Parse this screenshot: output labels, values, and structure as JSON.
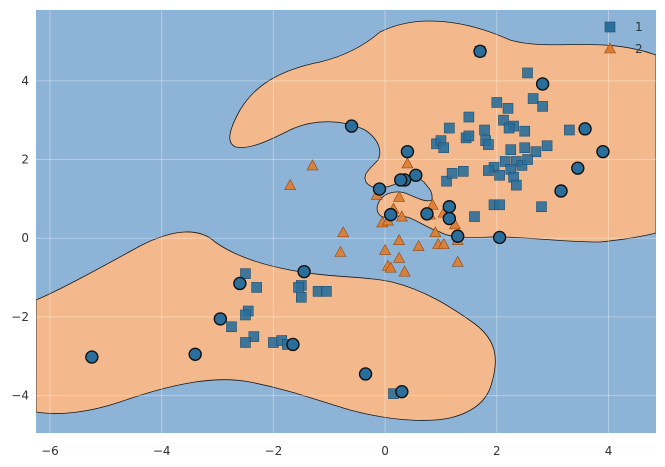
{
  "chart_data": {
    "type": "scatter",
    "title": "",
    "xlabel": "",
    "ylabel": "",
    "xlim": [
      -6.25,
      4.85
    ],
    "ylim": [
      -4.95,
      5.8
    ],
    "xticks": [
      -6,
      -4,
      -2,
      0,
      2,
      4
    ],
    "yticks": [
      -4,
      -2,
      0,
      2,
      4
    ],
    "xtick_labels": [
      "−6",
      "−4",
      "−2",
      "0",
      "2",
      "4"
    ],
    "ytick_labels": [
      "−4",
      "−2",
      "0",
      "2",
      "4"
    ],
    "grid": true,
    "legend_position": "top-right",
    "background_region_color": "#8db3d6",
    "decision_region_color": "#f3b98c",
    "series": [
      {
        "name": "1",
        "marker": "square",
        "color": "#2a6f9b",
        "points": [
          [
            1.7,
            4.75
          ],
          [
            2.55,
            4.2
          ],
          [
            2.65,
            3.55
          ],
          [
            2.82,
            3.35
          ],
          [
            2.0,
            3.45
          ],
          [
            2.2,
            3.3
          ],
          [
            1.5,
            3.08
          ],
          [
            2.12,
            3.0
          ],
          [
            2.3,
            2.85
          ],
          [
            2.22,
            2.8
          ],
          [
            2.5,
            2.72
          ],
          [
            3.3,
            2.75
          ],
          [
            1.78,
            2.75
          ],
          [
            1.15,
            2.8
          ],
          [
            1.45,
            2.55
          ],
          [
            1.5,
            2.6
          ],
          [
            1.8,
            2.48
          ],
          [
            1.85,
            2.38
          ],
          [
            0.92,
            2.4
          ],
          [
            1.0,
            2.48
          ],
          [
            1.05,
            2.3
          ],
          [
            2.25,
            2.25
          ],
          [
            2.5,
            2.3
          ],
          [
            2.9,
            2.35
          ],
          [
            2.7,
            2.2
          ],
          [
            2.15,
            1.95
          ],
          [
            2.35,
            1.95
          ],
          [
            2.45,
            1.85
          ],
          [
            2.55,
            2.0
          ],
          [
            1.95,
            1.8
          ],
          [
            1.85,
            1.72
          ],
          [
            2.05,
            1.6
          ],
          [
            2.25,
            1.75
          ],
          [
            2.3,
            1.55
          ],
          [
            2.35,
            1.35
          ],
          [
            1.1,
            1.45
          ],
          [
            1.2,
            1.65
          ],
          [
            1.4,
            1.7
          ],
          [
            1.6,
            0.55
          ],
          [
            1.95,
            0.85
          ],
          [
            2.05,
            0.85
          ],
          [
            2.8,
            0.8
          ],
          [
            -2.5,
            -0.9
          ],
          [
            -1.5,
            -1.2
          ],
          [
            -1.55,
            -1.25
          ],
          [
            -1.5,
            -1.5
          ],
          [
            -1.2,
            -1.35
          ],
          [
            -1.05,
            -1.35
          ],
          [
            -2.3,
            -1.25
          ],
          [
            -2.45,
            -1.85
          ],
          [
            -2.5,
            -1.95
          ],
          [
            -2.75,
            -2.25
          ],
          [
            -2.35,
            -2.5
          ],
          [
            -2.5,
            -2.65
          ],
          [
            -2.0,
            -2.65
          ],
          [
            -1.85,
            -2.6
          ],
          [
            -1.75,
            -2.7
          ],
          [
            0.15,
            -3.95
          ]
        ]
      },
      {
        "name": "2",
        "marker": "triangle",
        "color": "#e07a2e",
        "points": [
          [
            -1.3,
            1.85
          ],
          [
            -1.7,
            1.35
          ],
          [
            0.4,
            1.9
          ],
          [
            -0.15,
            1.1
          ],
          [
            0.25,
            1.05
          ],
          [
            0.15,
            0.75
          ],
          [
            0.3,
            0.55
          ],
          [
            0.85,
            0.85
          ],
          [
            1.05,
            0.65
          ],
          [
            -0.05,
            0.4
          ],
          [
            0.05,
            0.45
          ],
          [
            0.8,
            0.6
          ],
          [
            1.25,
            0.35
          ],
          [
            0.9,
            0.15
          ],
          [
            -0.75,
            0.15
          ],
          [
            0.25,
            -0.05
          ],
          [
            0.6,
            -0.2
          ],
          [
            0.95,
            -0.15
          ],
          [
            1.05,
            -0.15
          ],
          [
            1.3,
            -0.05
          ],
          [
            0.0,
            -0.3
          ],
          [
            -0.8,
            -0.35
          ],
          [
            0.25,
            -0.5
          ],
          [
            0.05,
            -0.7
          ],
          [
            0.1,
            -0.75
          ],
          [
            0.35,
            -0.85
          ],
          [
            1.3,
            -0.6
          ]
        ]
      }
    ],
    "circled_points": [
      [
        1.7,
        4.75
      ],
      [
        2.82,
        3.92
      ],
      [
        3.58,
        2.78
      ],
      [
        3.9,
        2.2
      ],
      [
        3.45,
        1.78
      ],
      [
        3.15,
        1.2
      ],
      [
        -0.6,
        2.85
      ],
      [
        0.4,
        2.2
      ],
      [
        0.55,
        1.6
      ],
      [
        0.35,
        1.48
      ],
      [
        0.28,
        1.48
      ],
      [
        -0.1,
        1.25
      ],
      [
        0.1,
        0.6
      ],
      [
        0.75,
        0.62
      ],
      [
        1.15,
        0.8
      ],
      [
        1.15,
        0.5
      ],
      [
        1.3,
        0.05
      ],
      [
        2.05,
        0.02
      ],
      [
        -1.45,
        -0.85
      ],
      [
        -2.6,
        -1.15
      ],
      [
        -2.95,
        -2.05
      ],
      [
        -1.65,
        -2.7
      ],
      [
        -3.4,
        -2.95
      ],
      [
        -5.25,
        -3.02
      ],
      [
        -0.35,
        -3.45
      ],
      [
        0.3,
        -3.9
      ]
    ]
  },
  "legend": {
    "items": [
      {
        "label": "1",
        "marker": "square",
        "color": "#2a6f9b"
      },
      {
        "label": "2",
        "marker": "triangle",
        "color": "#e07a2e"
      }
    ]
  }
}
